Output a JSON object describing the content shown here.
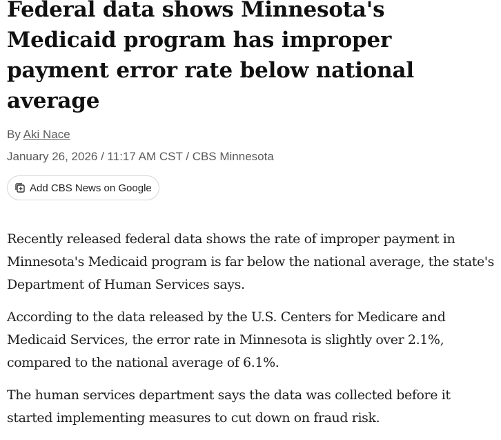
{
  "article": {
    "headline": "Federal data shows Minnesota's Medicaid program has improper payment error rate below national average",
    "byline_prefix": "By",
    "author": "Aki Nace",
    "dateline": "January 26, 2026 / 11:17 AM CST / CBS Minnesota",
    "google_button_label": "Add CBS News on Google",
    "google_button_icon": "add-to-stack-icon",
    "paragraphs": [
      "Recently released federal data shows the rate of improper payment in Minnesota's Medicaid program is far below the national average, the state's Department of Human Services says.",
      "According to the data released by the U.S. Centers for Medicare and Medicaid Services, the error rate in Minnesota is slightly over 2.1%, compared to the national average of 6.1%.",
      "The human services department says the data was collected before it started implementing measures to cut down on fraud risk."
    ]
  }
}
